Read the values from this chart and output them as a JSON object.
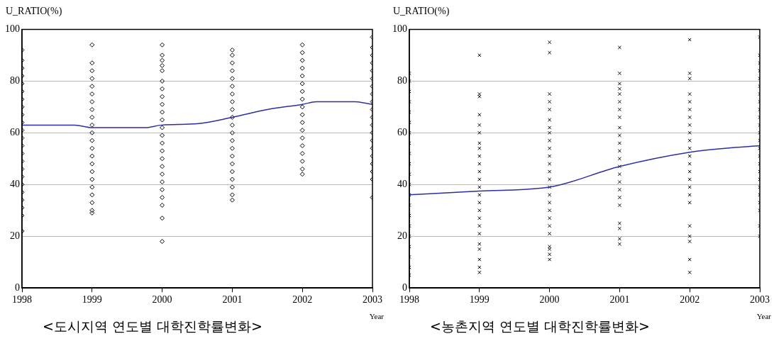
{
  "chart_data": [
    {
      "type": "scatter",
      "title": "<도시지역 연도별 대학진학률변화>",
      "xlabel": "Year",
      "ylabel": "U_RATIO(%)",
      "xlim": [
        1998,
        2003
      ],
      "xticks": [
        1998,
        1999,
        2000,
        2001,
        2002,
        2003
      ],
      "ylim": [
        0,
        100
      ],
      "yticks": [
        0,
        20,
        40,
        60,
        80,
        100
      ],
      "grid": "y",
      "legend": false,
      "series": [
        {
          "marker": "diamond",
          "color": "#000000",
          "x": [
            1998,
            1998,
            1998,
            1998,
            1998,
            1998,
            1998,
            1998,
            1998,
            1998,
            1998,
            1998,
            1998,
            1998,
            1998,
            1998,
            1998,
            1998,
            1998,
            1998,
            1998,
            1998,
            1998,
            1999,
            1999,
            1999,
            1999,
            1999,
            1999,
            1999,
            1999,
            1999,
            1999,
            1999,
            1999,
            1999,
            1999,
            1999,
            1999,
            1999,
            1999,
            1999,
            1999,
            1999,
            1999,
            2000,
            2000,
            2000,
            2000,
            2000,
            2000,
            2000,
            2000,
            2000,
            2000,
            2000,
            2000,
            2000,
            2000,
            2000,
            2000,
            2000,
            2000,
            2000,
            2000,
            2000,
            2000,
            2000,
            2000,
            2001,
            2001,
            2001,
            2001,
            2001,
            2001,
            2001,
            2001,
            2001,
            2001,
            2001,
            2001,
            2001,
            2001,
            2001,
            2001,
            2001,
            2001,
            2001,
            2001,
            2001,
            2002,
            2002,
            2002,
            2002,
            2002,
            2002,
            2002,
            2002,
            2002,
            2002,
            2002,
            2002,
            2002,
            2002,
            2002,
            2002,
            2002,
            2002,
            2003,
            2003,
            2003,
            2003,
            2003,
            2003,
            2003,
            2003,
            2003,
            2003,
            2003,
            2003,
            2003,
            2003,
            2003,
            2003,
            2003,
            2003,
            2003,
            2003
          ],
          "values": [
            22,
            28,
            31,
            34,
            37,
            40,
            43,
            46,
            49,
            52,
            55,
            58,
            61,
            64,
            67,
            70,
            73,
            76,
            79,
            82,
            85,
            88,
            92,
            29,
            30,
            33,
            36,
            39,
            42,
            45,
            48,
            51,
            54,
            57,
            60,
            63,
            66,
            69,
            72,
            75,
            78,
            81,
            84,
            87,
            94,
            18,
            27,
            32,
            35,
            38,
            41,
            44,
            47,
            50,
            53,
            56,
            59,
            62,
            65,
            68,
            71,
            74,
            77,
            80,
            84,
            86,
            88,
            90,
            94,
            34,
            36,
            39,
            42,
            45,
            48,
            51,
            54,
            57,
            60,
            63,
            66,
            69,
            72,
            75,
            78,
            81,
            84,
            87,
            90,
            92,
            44,
            46,
            49,
            52,
            55,
            58,
            61,
            64,
            67,
            70,
            73,
            76,
            79,
            82,
            85,
            88,
            91,
            94,
            35,
            42,
            45,
            48,
            51,
            54,
            57,
            60,
            63,
            66,
            69,
            72,
            75,
            78,
            81,
            84,
            87,
            90,
            93,
            97
          ]
        },
        {
          "type": "line",
          "marker": "none",
          "color": "#2e2ea0",
          "x": [
            1998,
            1998.75,
            1999,
            1999.75,
            2000,
            2000.5,
            2001,
            2001.5,
            2002,
            2002.2,
            2002.75,
            2003
          ],
          "values": [
            63,
            63,
            62,
            62,
            63,
            63.5,
            66,
            69,
            71,
            72,
            72,
            71
          ]
        }
      ]
    },
    {
      "type": "scatter",
      "title": "<농촌지역 연도별 대학진학률변화>",
      "xlabel": "Year",
      "ylabel": "U_RATIO(%)",
      "xlim": [
        1998,
        2003
      ],
      "xticks": [
        1998,
        1999,
        2000,
        2001,
        2002,
        2003
      ],
      "ylim": [
        0,
        100
      ],
      "yticks": [
        0,
        20,
        40,
        60,
        80,
        100
      ],
      "grid": "y",
      "legend": false,
      "series": [
        {
          "marker": "cross",
          "color": "#000000",
          "x": [
            1998,
            1998,
            1998,
            1998,
            1998,
            1998,
            1998,
            1998,
            1998,
            1998,
            1998,
            1998,
            1998,
            1998,
            1998,
            1998,
            1998,
            1998,
            1998,
            1998,
            1998,
            1999,
            1999,
            1999,
            1999,
            1999,
            1999,
            1999,
            1999,
            1999,
            1999,
            1999,
            1999,
            1999,
            1999,
            1999,
            1999,
            1999,
            1999,
            1999,
            1999,
            1999,
            1999,
            1999,
            1999,
            2000,
            2000,
            2000,
            2000,
            2000,
            2000,
            2000,
            2000,
            2000,
            2000,
            2000,
            2000,
            2000,
            2000,
            2000,
            2000,
            2000,
            2000,
            2000,
            2000,
            2000,
            2000,
            2000,
            2000,
            2000,
            2001,
            2001,
            2001,
            2001,
            2001,
            2001,
            2001,
            2001,
            2001,
            2001,
            2001,
            2001,
            2001,
            2001,
            2001,
            2001,
            2001,
            2001,
            2001,
            2001,
            2001,
            2001,
            2001,
            2002,
            2002,
            2002,
            2002,
            2002,
            2002,
            2002,
            2002,
            2002,
            2002,
            2002,
            2002,
            2002,
            2002,
            2002,
            2002,
            2002,
            2002,
            2002,
            2002,
            2002,
            2002,
            2002,
            2003,
            2003,
            2003,
            2003,
            2003,
            2003,
            2003,
            2003,
            2003,
            2003,
            2003,
            2003,
            2003,
            2003,
            2003,
            2003,
            2003,
            2003,
            2003,
            2003,
            2003,
            2003,
            2003,
            2003
          ],
          "values": [
            5,
            8,
            12,
            16,
            20,
            24,
            28,
            32,
            36,
            40,
            44,
            48,
            52,
            56,
            60,
            64,
            68,
            72,
            76,
            80,
            83,
            6,
            8,
            11,
            15,
            17,
            21,
            24,
            27,
            30,
            33,
            36,
            39,
            42,
            45,
            48,
            51,
            54,
            56,
            60,
            63,
            67,
            74,
            75,
            90,
            11,
            13,
            15,
            16,
            21,
            24,
            27,
            30,
            33,
            36,
            39,
            42,
            45,
            48,
            51,
            54,
            57,
            60,
            62,
            65,
            69,
            72,
            75,
            91,
            95,
            17,
            19,
            23,
            25,
            32,
            35,
            38,
            41,
            44,
            47,
            50,
            53,
            56,
            59,
            62,
            66,
            69,
            72,
            75,
            77,
            79,
            83,
            93,
            6,
            11,
            18,
            20,
            24,
            33,
            36,
            39,
            42,
            45,
            48,
            51,
            54,
            57,
            60,
            63,
            66,
            69,
            72,
            75,
            81,
            83,
            96,
            20,
            24,
            30,
            33,
            36,
            39,
            42,
            45,
            48,
            51,
            54,
            57,
            60,
            63,
            66,
            69,
            72,
            75,
            78,
            81,
            84,
            87,
            90,
            97
          ]
        },
        {
          "type": "line",
          "marker": "none",
          "color": "#2e2ea0",
          "x": [
            1998,
            1999,
            2000,
            2001,
            2002,
            2002.5,
            2003
          ],
          "values": [
            36,
            37.5,
            39,
            47,
            52.5,
            54,
            55
          ]
        }
      ]
    }
  ]
}
